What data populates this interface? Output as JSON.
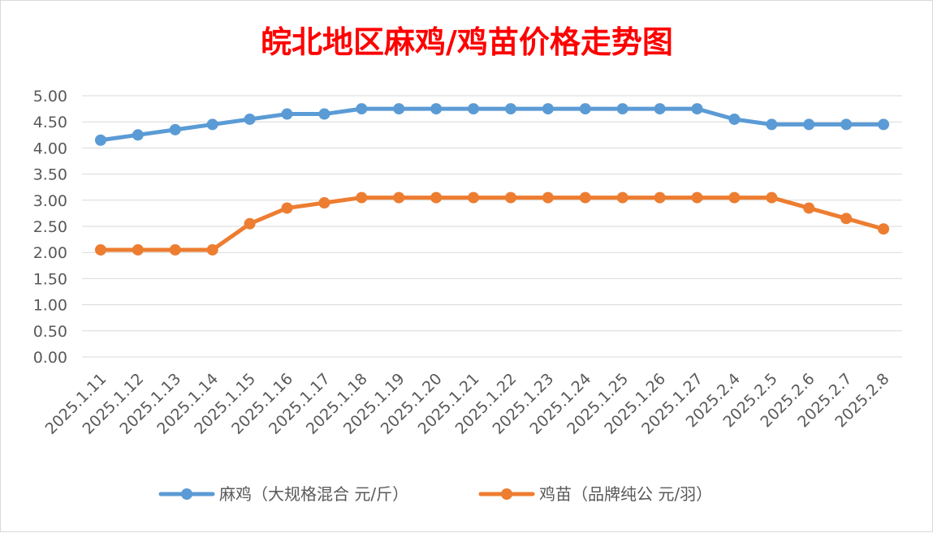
{
  "chart_data": {
    "type": "line",
    "title": "皖北地区麻鸡/鸡苗价格走势图",
    "xlabel": "",
    "ylabel": "",
    "ylim": [
      0,
      5
    ],
    "ytick_step": 0.5,
    "ytick_decimals": 2,
    "grid": true,
    "legend_position": "bottom",
    "categories": [
      "2025.1.11",
      "2025.1.12",
      "2025.1.13",
      "2025.1.14",
      "2025.1.15",
      "2025.1.16",
      "2025.1.17",
      "2025.1.18",
      "2025.1.19",
      "2025.1.20",
      "2025.1.21",
      "2025.1.22",
      "2025.1.23",
      "2025.1.24",
      "2025.1.25",
      "2025.1.26",
      "2025.1.27",
      "2025.2.4",
      "2025.2.5",
      "2025.2.6",
      "2025.2.7",
      "2025.2.8"
    ],
    "series": [
      {
        "name": "麻鸡（大规格混合 元/斤）",
        "color": "#5b9bd5",
        "values": [
          4.15,
          4.25,
          4.35,
          4.45,
          4.55,
          4.65,
          4.65,
          4.75,
          4.75,
          4.75,
          4.75,
          4.75,
          4.75,
          4.75,
          4.75,
          4.75,
          4.75,
          4.55,
          4.45,
          4.45,
          4.45,
          4.45
        ]
      },
      {
        "name": "鸡苗（品牌纯公 元/羽）",
        "color": "#ed7d31",
        "values": [
          2.05,
          2.05,
          2.05,
          2.05,
          2.55,
          2.85,
          2.95,
          3.05,
          3.05,
          3.05,
          3.05,
          3.05,
          3.05,
          3.05,
          3.05,
          3.05,
          3.05,
          3.05,
          3.05,
          2.85,
          2.65,
          2.45
        ]
      }
    ]
  }
}
